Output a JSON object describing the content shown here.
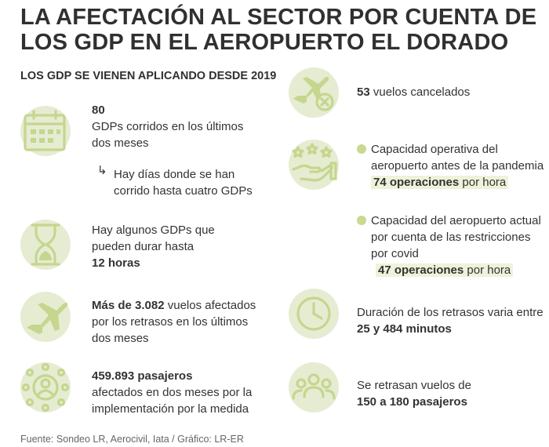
{
  "title_line1": "LA AFECTACIÓN AL SECTOR POR CUENTA DE",
  "title_line2": "LOS GDP EN EL AEROPUERTO EL DORADO",
  "subtitle": "LOS GDP SE VIENEN APLICANDO DESDE 2019",
  "left": {
    "gdps": {
      "number": "80",
      "line1": "GDPs corridos en los últimos",
      "line2": "dos meses",
      "note_line1": "Hay días donde se han",
      "note_line2": "corrido hasta cuatro GDPs",
      "icon": "calendar-icon"
    },
    "duration": {
      "line1": "Hay algunos GDPs que",
      "line2": "pueden durar hasta",
      "value": "12 horas",
      "icon": "hourglass-icon"
    },
    "flights": {
      "bold": "Más de 3.082",
      "rest": " vuelos afectados",
      "line2": "por los retrasos en los últimos",
      "line3": "dos meses",
      "icon": "airplane-icon"
    },
    "passengers": {
      "value": "459.893 pasajeros",
      "line2": "afectados en dos meses por la",
      "line3": "implementación por la medida",
      "icon": "people-network-icon"
    }
  },
  "right": {
    "cancelled": {
      "bold": "53",
      "rest": " vuelos cancelados",
      "icon": "cancelled-flight-icon"
    },
    "capacity_before": {
      "line1": "Capacidad operativa del",
      "line2": "aeropuerto antes de la pandemia",
      "value_bold": "74 operaciones",
      "value_rest": " por hora",
      "icon": "rating-hand-icon"
    },
    "capacity_now": {
      "line1": "Capacidad del aeropuerto actual",
      "line2": "por cuenta de las restricciones",
      "line3": "por covid",
      "value_bold": "47 operaciones",
      "value_rest": " por hora"
    },
    "delays": {
      "line1": "Duración de los retrasos varia entre",
      "value": "25 y 484 minutos",
      "icon": "clock-icon"
    },
    "delayed_pax": {
      "line1": "Se retrasan vuelos de",
      "value": "150 a 180 pasajeros",
      "icon": "group-icon"
    }
  },
  "source": "Fuente: Sondeo LR, Aerocivil, Iata / Gráfico: LR-ER",
  "colors": {
    "icon_bg": "#e6ecd2",
    "accent": "#c5d68e",
    "highlight": "#eef2d9"
  }
}
